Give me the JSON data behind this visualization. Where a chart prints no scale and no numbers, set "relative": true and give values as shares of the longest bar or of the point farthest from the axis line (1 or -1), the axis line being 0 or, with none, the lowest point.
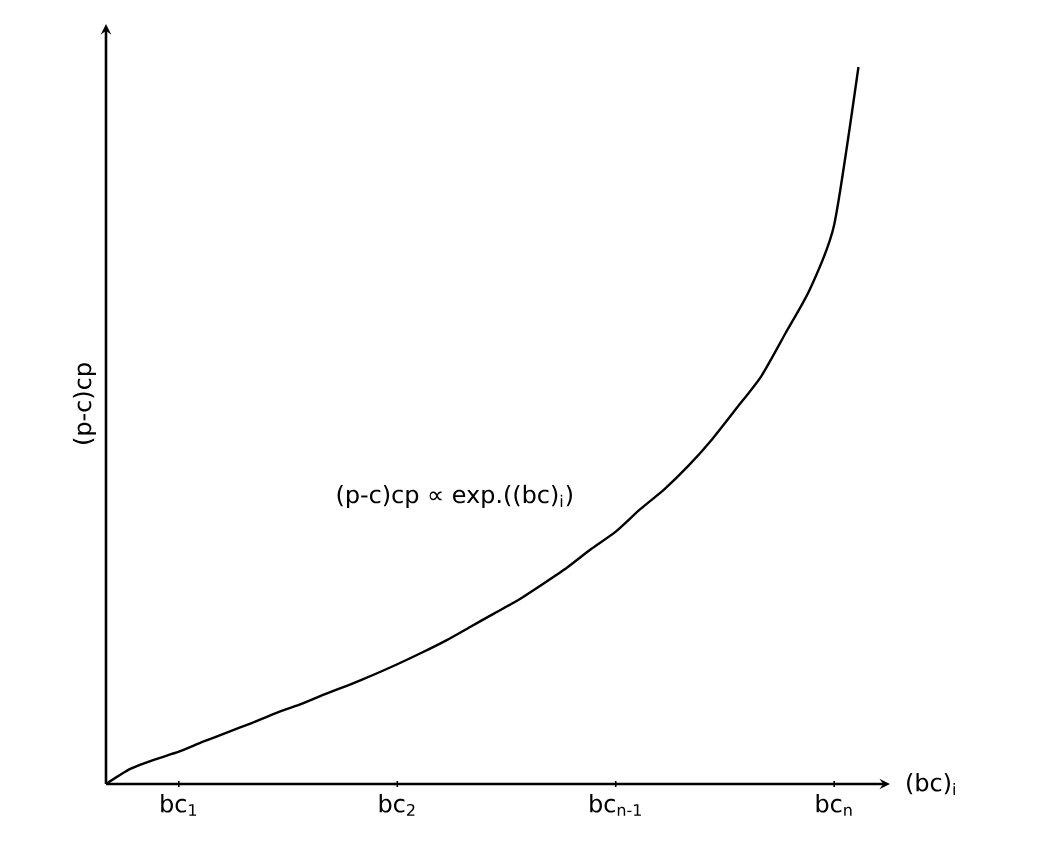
{
  "chart_data": {
    "type": "line",
    "relative": true,
    "xlabel": "(bc)$_{i}$",
    "ylabel": "(p-c)cp",
    "categories": [
      null,
      null,
      null,
      "bc$_{1}$",
      null,
      null,
      null,
      null,
      null,
      null,
      null,
      null,
      "bc$_{2}$",
      null,
      null,
      null,
      null,
      null,
      null,
      null,
      null,
      "bc$_{n-1}$",
      null,
      null,
      null,
      null,
      null,
      null,
      null,
      null,
      "bc$_{n}$",
      null
    ],
    "values": [
      0,
      0.021,
      0.034,
      0.045,
      0.059,
      0.072,
      0.085,
      0.099,
      0.111,
      0.125,
      0.138,
      0.152,
      0.167,
      0.183,
      0.2,
      0.219,
      0.238,
      0.257,
      0.279,
      0.302,
      0.328,
      0.352,
      0.383,
      0.411,
      0.444,
      0.482,
      0.525,
      0.569,
      0.629,
      0.69,
      0.78,
      1
    ],
    "color": "#000000",
    "annotations": [
      "(p-c)cp ∝ exp.((bc)$_{i}$)"
    ],
    "line_style": "solid"
  }
}
